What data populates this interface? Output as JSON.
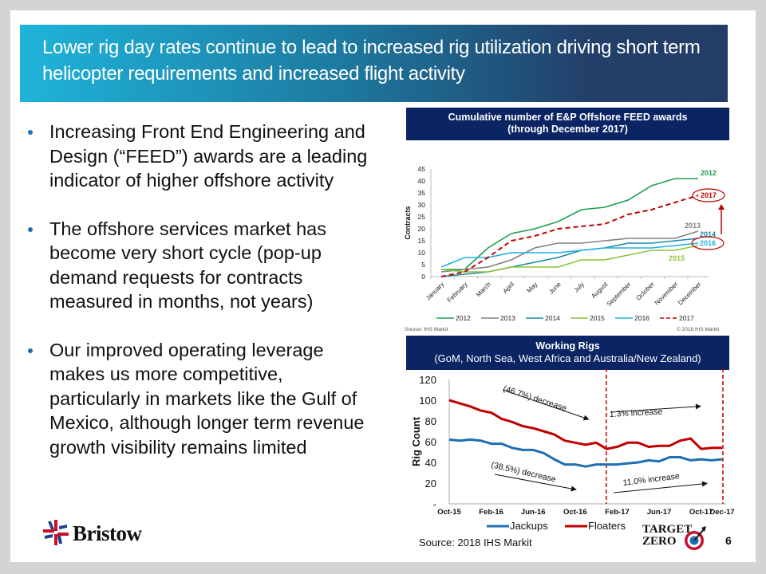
{
  "title": "Lower rig day rates continue to lead to increased rig utilization driving short term helicopter requirements and increased flight activity",
  "bullets": [
    "Increasing Front End Engineering and Design (“FEED”) awards are a leading indicator of higher offshore activity",
    "The offshore services market has become very short cycle (pop-up demand requests for contracts measured in months, not years)",
    "Our improved operating leverage makes us more competitive, particularly in markets like the Gulf of Mexico, although longer term revenue growth visibility remains limited"
  ],
  "footer": {
    "source": "Source: 2018 IHS Markit",
    "page_number": "6",
    "logo_text": "Bristow",
    "target_zero_line1": "TARGET",
    "target_zero_line2": "ZERO"
  },
  "colors": {
    "header_navy": "#0b2463",
    "accent_blue": "#1f6fb2",
    "highlight_red": "#c00000"
  },
  "chart_data": [
    {
      "type": "line",
      "title": "Cumulative number of E&P Offshore FEED awards",
      "subtitle": "(through December 2017)",
      "xlabel": "",
      "ylabel": "Contracts",
      "ylim": [
        0,
        45
      ],
      "yticks": [
        0,
        5,
        10,
        15,
        20,
        25,
        30,
        35,
        40,
        45
      ],
      "grid": false,
      "legend": "bottom",
      "source": "Source: IHS Markit",
      "copyright": "© 2018 IHS Markit",
      "categories": [
        "January",
        "February",
        "March",
        "April",
        "May",
        "June",
        "July",
        "August",
        "September",
        "October",
        "November",
        "December"
      ],
      "series": [
        {
          "name": "2012",
          "color": "#1aa050",
          "dashed": false,
          "values": [
            3,
            3,
            12,
            18,
            20,
            23,
            28,
            29,
            32,
            38,
            41,
            41
          ]
        },
        {
          "name": "2013",
          "color": "#808080",
          "dashed": false,
          "values": [
            2,
            3,
            4,
            7,
            12,
            14,
            14,
            15,
            16,
            16,
            16,
            19
          ]
        },
        {
          "name": "2014",
          "color": "#1a8aa0",
          "dashed": false,
          "values": [
            0,
            1,
            2,
            4,
            6,
            8,
            11,
            12,
            14,
            14,
            15,
            16
          ]
        },
        {
          "name": "2015",
          "color": "#8cc43c",
          "dashed": false,
          "values": [
            3,
            2,
            2,
            4,
            4,
            4,
            7,
            7,
            9,
            11,
            11,
            13
          ]
        },
        {
          "name": "2016",
          "color": "#20b0e0",
          "dashed": false,
          "values": [
            4,
            8,
            8,
            10,
            10,
            10,
            11,
            12,
            12,
            12,
            13,
            14
          ]
        },
        {
          "name": "2017",
          "color": "#c00000",
          "dashed": true,
          "values": [
            0,
            2,
            8,
            15,
            17,
            20,
            21,
            22,
            26,
            28,
            31,
            34
          ]
        }
      ],
      "annotations": [
        {
          "text": "2012",
          "series": "2012"
        },
        {
          "text": "2017",
          "series": "2017",
          "circled": true
        },
        {
          "text": "2013",
          "series": "2013"
        },
        {
          "text": "2014",
          "series": "2014"
        },
        {
          "text": "2016",
          "series": "2016",
          "circled": true
        },
        {
          "text": "2015",
          "series": "2015"
        }
      ]
    },
    {
      "type": "line",
      "title": "Working Rigs",
      "subtitle": "(GoM, North Sea, West Africa and Australia/New Zealand)",
      "xlabel": "",
      "ylabel": "Rig Count",
      "ylim": [
        0,
        120
      ],
      "yticks": [
        "-",
        "20",
        "40",
        "60",
        "80",
        "100",
        "120"
      ],
      "grid": false,
      "legend": "bottom",
      "x_tick_labels": [
        "Oct-15",
        "Feb-16",
        "Jun-16",
        "Oct-16",
        "Feb-17",
        "Jun-17",
        "Oct-17",
        "Dec-17"
      ],
      "x_tick_index": [
        0,
        4,
        8,
        12,
        16,
        20,
        24,
        26
      ],
      "x": [
        "Oct-15",
        "Nov-15",
        "Dec-15",
        "Jan-16",
        "Feb-16",
        "Mar-16",
        "Apr-16",
        "May-16",
        "Jun-16",
        "Jul-16",
        "Aug-16",
        "Sep-16",
        "Oct-16",
        "Nov-16",
        "Dec-16",
        "Jan-17",
        "Feb-17",
        "Mar-17",
        "Apr-17",
        "May-17",
        "Jun-17",
        "Jul-17",
        "Aug-17",
        "Sep-17",
        "Oct-17",
        "Nov-17",
        "Dec-17"
      ],
      "series": [
        {
          "name": "Jackups",
          "color": "#1f6fb2",
          "values": [
            62,
            61,
            62,
            61,
            58,
            58,
            54,
            52,
            52,
            49,
            43,
            38,
            38,
            36,
            38,
            38,
            38,
            39,
            40,
            42,
            41,
            45,
            45,
            42,
            43,
            42,
            43
          ]
        },
        {
          "name": "Floaters",
          "color": "#c00000",
          "values": [
            100,
            97,
            94,
            90,
            88,
            82,
            79,
            75,
            73,
            70,
            67,
            61,
            59,
            57,
            59,
            53,
            55,
            59,
            59,
            55,
            56,
            56,
            61,
            63,
            53,
            54,
            54
          ]
        }
      ],
      "vertical_markers": [
        "Jan-17",
        "Dec-17"
      ],
      "annotations": [
        {
          "text": "(46.7%) decrease",
          "series": "Floaters"
        },
        {
          "text": "1.3% increase",
          "series": "Floaters"
        },
        {
          "text": "(38.5%) decrease",
          "series": "Jackups"
        },
        {
          "text": "11.0% increase",
          "series": "Jackups"
        }
      ]
    }
  ]
}
